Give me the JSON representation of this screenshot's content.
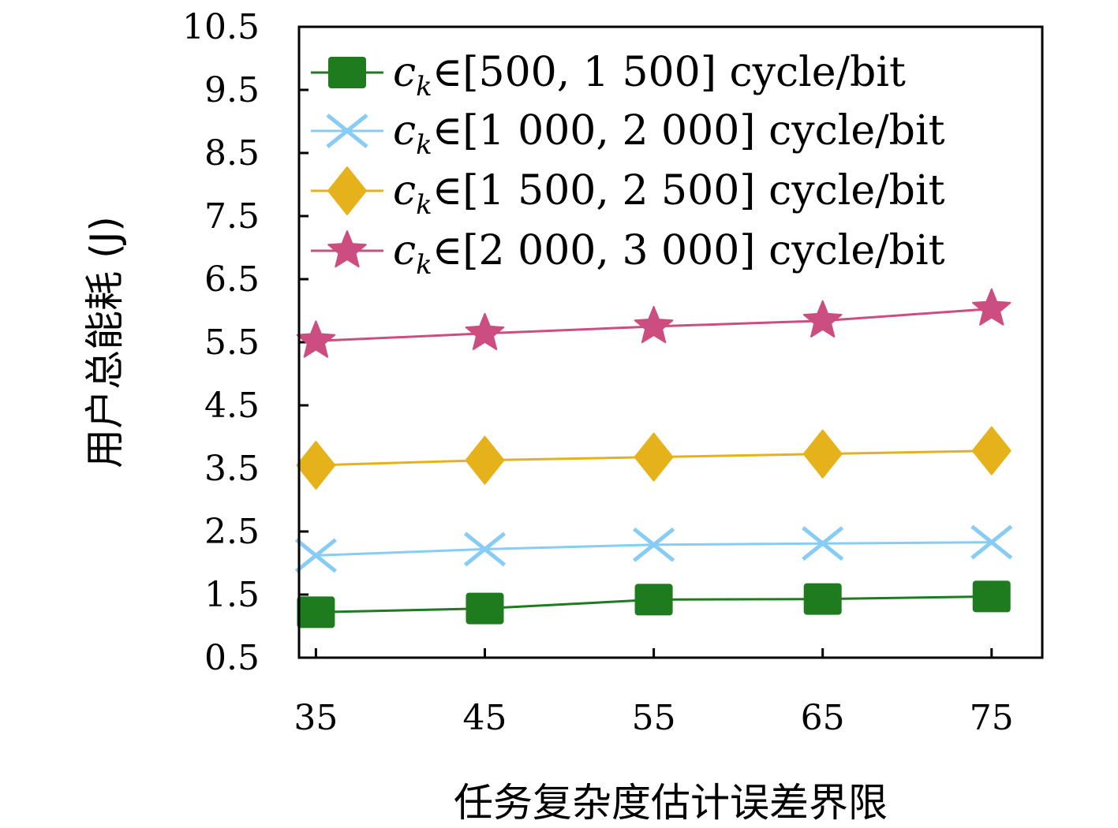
{
  "chart_data": {
    "type": "line",
    "xlabel": "任务复杂度估计误差界限",
    "ylabel": "用户总能耗 (J)",
    "x": [
      35,
      45,
      55,
      65,
      75
    ],
    "x_tick_labels": [
      "35",
      "45",
      "55",
      "65",
      "75"
    ],
    "xlim": [
      34,
      78
    ],
    "ylim": [
      0.5,
      10.5
    ],
    "y_ticks": [
      0.5,
      1.5,
      2.5,
      3.5,
      4.5,
      5.5,
      6.5,
      7.5,
      8.5,
      9.5,
      10.5
    ],
    "y_tick_labels": [
      "0.5",
      "1.5",
      "2.5",
      "3.5",
      "4.5",
      "5.5",
      "6.5",
      "7.5",
      "8.5",
      "9.5",
      "10.5"
    ],
    "grid": false,
    "legend_position": "top-left",
    "series": [
      {
        "legend_prefix": "c",
        "legend_sub": "k",
        "legend_rest": "∈[500, 1 500] cycle/bit",
        "color": "#1e7b1e",
        "marker": "square",
        "values": [
          1.22,
          1.28,
          1.42,
          1.43,
          1.47
        ]
      },
      {
        "legend_prefix": "c",
        "legend_sub": "k",
        "legend_rest": "∈[1 000, 2 000] cycle/bit",
        "color": "#87ccf5",
        "marker": "x",
        "values": [
          2.12,
          2.22,
          2.29,
          2.31,
          2.33
        ]
      },
      {
        "legend_prefix": "c",
        "legend_sub": "k",
        "legend_rest": "∈[1 500, 2 500] cycle/bit",
        "color": "#e6b21c",
        "marker": "diamond",
        "values": [
          3.55,
          3.63,
          3.68,
          3.73,
          3.78
        ]
      },
      {
        "legend_prefix": "c",
        "legend_sub": "k",
        "legend_rest": "∈[2 000, 3 000] cycle/bit",
        "color": "#cc4d80",
        "marker": "star",
        "values": [
          5.52,
          5.64,
          5.75,
          5.84,
          6.03
        ]
      }
    ]
  }
}
